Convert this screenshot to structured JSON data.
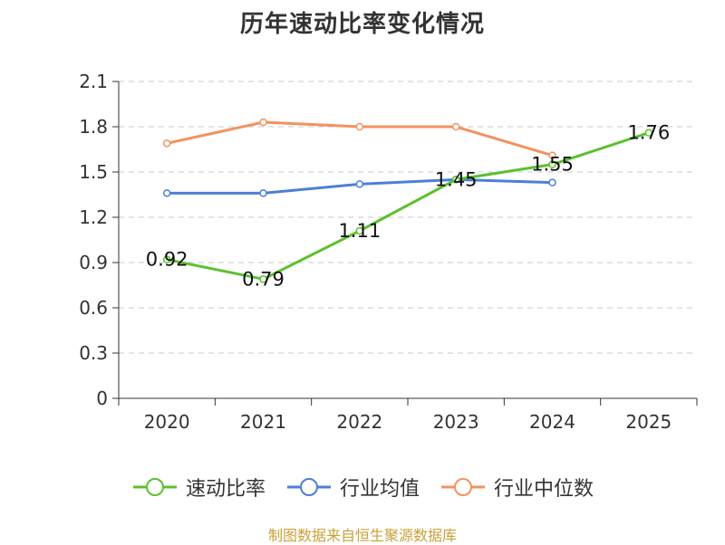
{
  "chart_data": {
    "type": "line",
    "title": "历年速动比率变化情况",
    "categories": [
      "2020",
      "2021",
      "2022",
      "2023",
      "2024",
      "2025"
    ],
    "ylim": [
      0,
      2.1
    ],
    "yticks": [
      "0",
      "0.3",
      "0.6",
      "0.9",
      "1.2",
      "1.5",
      "1.8",
      "2.1"
    ],
    "grid": true,
    "legend_position": "bottom-center",
    "series": [
      {
        "name": "速动比率",
        "color": "#5cc02e",
        "values": [
          0.92,
          0.79,
          1.11,
          1.45,
          1.55,
          1.76
        ],
        "labels": [
          "0.92",
          "0.79",
          "1.11",
          "1.45",
          "1.55",
          "1.76"
        ]
      },
      {
        "name": "行业均值",
        "color": "#4c7fd6",
        "values": [
          1.36,
          1.36,
          1.42,
          1.45,
          1.43,
          null
        ]
      },
      {
        "name": "行业中位数",
        "color": "#f4915e",
        "values": [
          1.69,
          1.83,
          1.8,
          1.8,
          1.61,
          null
        ]
      }
    ]
  },
  "source_note": "制图数据来自恒生聚源数据库"
}
